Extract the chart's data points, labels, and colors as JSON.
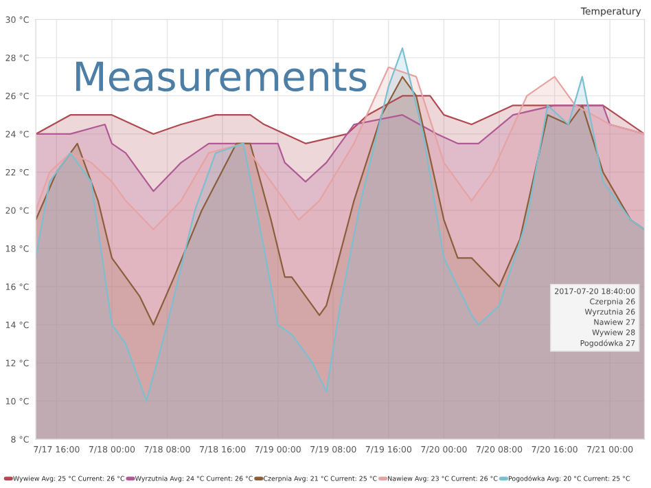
{
  "chart_data": {
    "type": "area",
    "title": "Measurements",
    "subtitle": "Temperatury",
    "xlim": [
      "2017-07-17T13:00",
      "2017-07-21T05:00"
    ],
    "xticks": [
      {
        "value": "2017-07-17T16:00",
        "label": "7/17 16:00"
      },
      {
        "value": "2017-07-18T00:00",
        "label": "7/18 00:00"
      },
      {
        "value": "2017-07-18T08:00",
        "label": "7/18 08:00"
      },
      {
        "value": "2017-07-18T16:00",
        "label": "7/18 16:00"
      },
      {
        "value": "2017-07-19T00:00",
        "label": "7/19 00:00"
      },
      {
        "value": "2017-07-19T08:00",
        "label": "7/19 08:00"
      },
      {
        "value": "2017-07-19T16:00",
        "label": "7/19 16:00"
      },
      {
        "value": "2017-07-20T00:00",
        "label": "7/20 00:00"
      },
      {
        "value": "2017-07-20T08:00",
        "label": "7/20 08:00"
      },
      {
        "value": "2017-07-20T16:00",
        "label": "7/20 16:00"
      },
      {
        "value": "2017-07-21T00:00",
        "label": "7/21 00:00"
      }
    ],
    "ylim": [
      8,
      30
    ],
    "yticks": [
      {
        "value": 8,
        "label": "8 °C"
      },
      {
        "value": 10,
        "label": "10 °C"
      },
      {
        "value": 12,
        "label": "12 °C"
      },
      {
        "value": 14,
        "label": "14 °C"
      },
      {
        "value": 16,
        "label": "16 °C"
      },
      {
        "value": 18,
        "label": "18 °C"
      },
      {
        "value": 20,
        "label": "20 °C"
      },
      {
        "value": 22,
        "label": "22 °C"
      },
      {
        "value": 24,
        "label": "24 °C"
      },
      {
        "value": 26,
        "label": "26 °C"
      },
      {
        "value": 28,
        "label": "28 °C"
      },
      {
        "value": 30,
        "label": "30 °C"
      }
    ],
    "grid": true,
    "legend": "bottom",
    "marker": "none",
    "line_style": "solid",
    "series": [
      {
        "name": "Wywiew Avg: 25 °C Current: 26 °C",
        "color": "#b04a52",
        "x": [
          "2017-07-17T13:00",
          "2017-07-17T18:00",
          "2017-07-18T00:00",
          "2017-07-18T06:00",
          "2017-07-18T10:00",
          "2017-07-18T15:00",
          "2017-07-18T20:00",
          "2017-07-18T22:00",
          "2017-07-19T04:00",
          "2017-07-19T10:00",
          "2017-07-19T13:00",
          "2017-07-19T18:00",
          "2017-07-19T22:00",
          "2017-07-20T00:00",
          "2017-07-20T04:00",
          "2017-07-20T10:00",
          "2017-07-20T16:00",
          "2017-07-20T23:00",
          "2017-07-21T01:00",
          "2017-07-21T05:00"
        ],
        "values": [
          24,
          25,
          25,
          24,
          24.5,
          25,
          25,
          24.5,
          23.5,
          24,
          25,
          26,
          26,
          25,
          24.5,
          25.5,
          25.5,
          25.5,
          25,
          24
        ]
      },
      {
        "name": "Wyrzutnia Avg: 24 °C Current: 26 °C",
        "color": "#b05a95",
        "x": [
          "2017-07-17T13:00",
          "2017-07-17T18:00",
          "2017-07-17T23:00",
          "2017-07-18T00:00",
          "2017-07-18T02:00",
          "2017-07-18T06:00",
          "2017-07-18T10:00",
          "2017-07-18T14:00",
          "2017-07-18T20:00",
          "2017-07-19T00:00",
          "2017-07-19T01:00",
          "2017-07-19T04:00",
          "2017-07-19T07:00",
          "2017-07-19T11:00",
          "2017-07-19T18:00",
          "2017-07-19T23:00",
          "2017-07-20T02:00",
          "2017-07-20T05:00",
          "2017-07-20T10:00",
          "2017-07-20T16:00",
          "2017-07-20T23:00",
          "2017-07-21T00:00",
          "2017-07-21T05:00"
        ],
        "values": [
          24,
          24,
          24.5,
          23.5,
          23,
          21,
          22.5,
          23.5,
          23.5,
          23.5,
          22.5,
          21.5,
          22.5,
          24.5,
          25,
          24,
          23.5,
          23.5,
          25,
          25.5,
          25.5,
          24.5,
          24
        ]
      },
      {
        "name": "Czerpnia Avg: 21 °C Current: 25 °C",
        "color": "#8b5e3c",
        "x": [
          "2017-07-17T13:00",
          "2017-07-17T16:00",
          "2017-07-17T19:00",
          "2017-07-17T22:00",
          "2017-07-18T00:00",
          "2017-07-18T01:00",
          "2017-07-18T04:00",
          "2017-07-18T06:00",
          "2017-07-18T09:00",
          "2017-07-18T13:00",
          "2017-07-18T18:00",
          "2017-07-18T20:00",
          "2017-07-18T23:00",
          "2017-07-19T01:00",
          "2017-07-19T02:00",
          "2017-07-19T04:00",
          "2017-07-19T06:00",
          "2017-07-19T07:00",
          "2017-07-19T11:00",
          "2017-07-19T15:00",
          "2017-07-19T18:00",
          "2017-07-19T20:00",
          "2017-07-20T00:00",
          "2017-07-20T02:00",
          "2017-07-20T04:00",
          "2017-07-20T08:00",
          "2017-07-20T11:00",
          "2017-07-20T15:00",
          "2017-07-20T18:00",
          "2017-07-20T20:00",
          "2017-07-20T23:00",
          "2017-07-21T03:00",
          "2017-07-21T05:00"
        ],
        "values": [
          19.5,
          22,
          23.5,
          20.5,
          17.5,
          17,
          15.5,
          14,
          16.5,
          20,
          23.5,
          23.5,
          19.5,
          16.5,
          16.5,
          15.5,
          14.5,
          15,
          20.5,
          25,
          27,
          26,
          19.5,
          17.5,
          17.5,
          16,
          18.5,
          25,
          24.5,
          25.5,
          22,
          19.5,
          19
        ]
      },
      {
        "name": "Nawiew Avg: 23 °C Current: 26 °C",
        "color": "#e6a3a3",
        "x": [
          "2017-07-17T13:00",
          "2017-07-17T15:00",
          "2017-07-17T18:00",
          "2017-07-17T21:00",
          "2017-07-18T00:00",
          "2017-07-18T02:00",
          "2017-07-18T06:00",
          "2017-07-18T10:00",
          "2017-07-18T14:00",
          "2017-07-18T19:00",
          "2017-07-18T23:00",
          "2017-07-19T03:00",
          "2017-07-19T06:00",
          "2017-07-19T11:00",
          "2017-07-19T16:00",
          "2017-07-19T20:00",
          "2017-07-20T00:00",
          "2017-07-20T04:00",
          "2017-07-20T07:00",
          "2017-07-20T12:00",
          "2017-07-20T16:00",
          "2017-07-20T19:00",
          "2017-07-21T00:00",
          "2017-07-21T05:00"
        ],
        "values": [
          20,
          22,
          23,
          22.5,
          21.5,
          20.5,
          19,
          20.5,
          23,
          23.5,
          21.5,
          19.5,
          20.5,
          23.5,
          27.5,
          27,
          22.5,
          20.5,
          22,
          26,
          27,
          25.5,
          24.5,
          24
        ]
      },
      {
        "name": "Pogodówka Avg: 20 °C Current: 25 °C",
        "color": "#7cbfd0",
        "x": [
          "2017-07-17T13:00",
          "2017-07-17T15:00",
          "2017-07-17T18:00",
          "2017-07-17T21:00",
          "2017-07-18T00:00",
          "2017-07-18T02:00",
          "2017-07-18T05:00",
          "2017-07-18T08:00",
          "2017-07-18T12:00",
          "2017-07-18T15:00",
          "2017-07-18T19:00",
          "2017-07-18T22:00",
          "2017-07-19T00:00",
          "2017-07-19T02:00",
          "2017-07-19T05:00",
          "2017-07-19T07:00",
          "2017-07-19T09:00",
          "2017-07-19T12:00",
          "2017-07-19T16:00",
          "2017-07-19T18:00",
          "2017-07-19T21:00",
          "2017-07-20T00:00",
          "2017-07-20T04:00",
          "2017-07-20T05:00",
          "2017-07-20T08:00",
          "2017-07-20T12:00",
          "2017-07-20T15:00",
          "2017-07-20T18:00",
          "2017-07-20T20:00",
          "2017-07-20T23:00",
          "2017-07-21T03:00",
          "2017-07-21T05:00"
        ],
        "values": [
          17.5,
          21.5,
          23,
          21.5,
          14,
          13,
          10,
          14,
          20,
          23,
          23.5,
          18,
          14,
          13.5,
          12,
          10.5,
          15,
          20.5,
          26.5,
          28.5,
          24,
          17.5,
          14.5,
          14,
          15,
          19.5,
          25.5,
          24.5,
          27,
          21.5,
          19.5,
          19
        ]
      }
    ],
    "annotations": [
      "2017-07-20 18:40:00",
      "Czerpnia 26",
      "Wyrzutnia 26",
      "Nawiew 27",
      "Wywiew 28",
      "Pogodówka 27"
    ]
  }
}
